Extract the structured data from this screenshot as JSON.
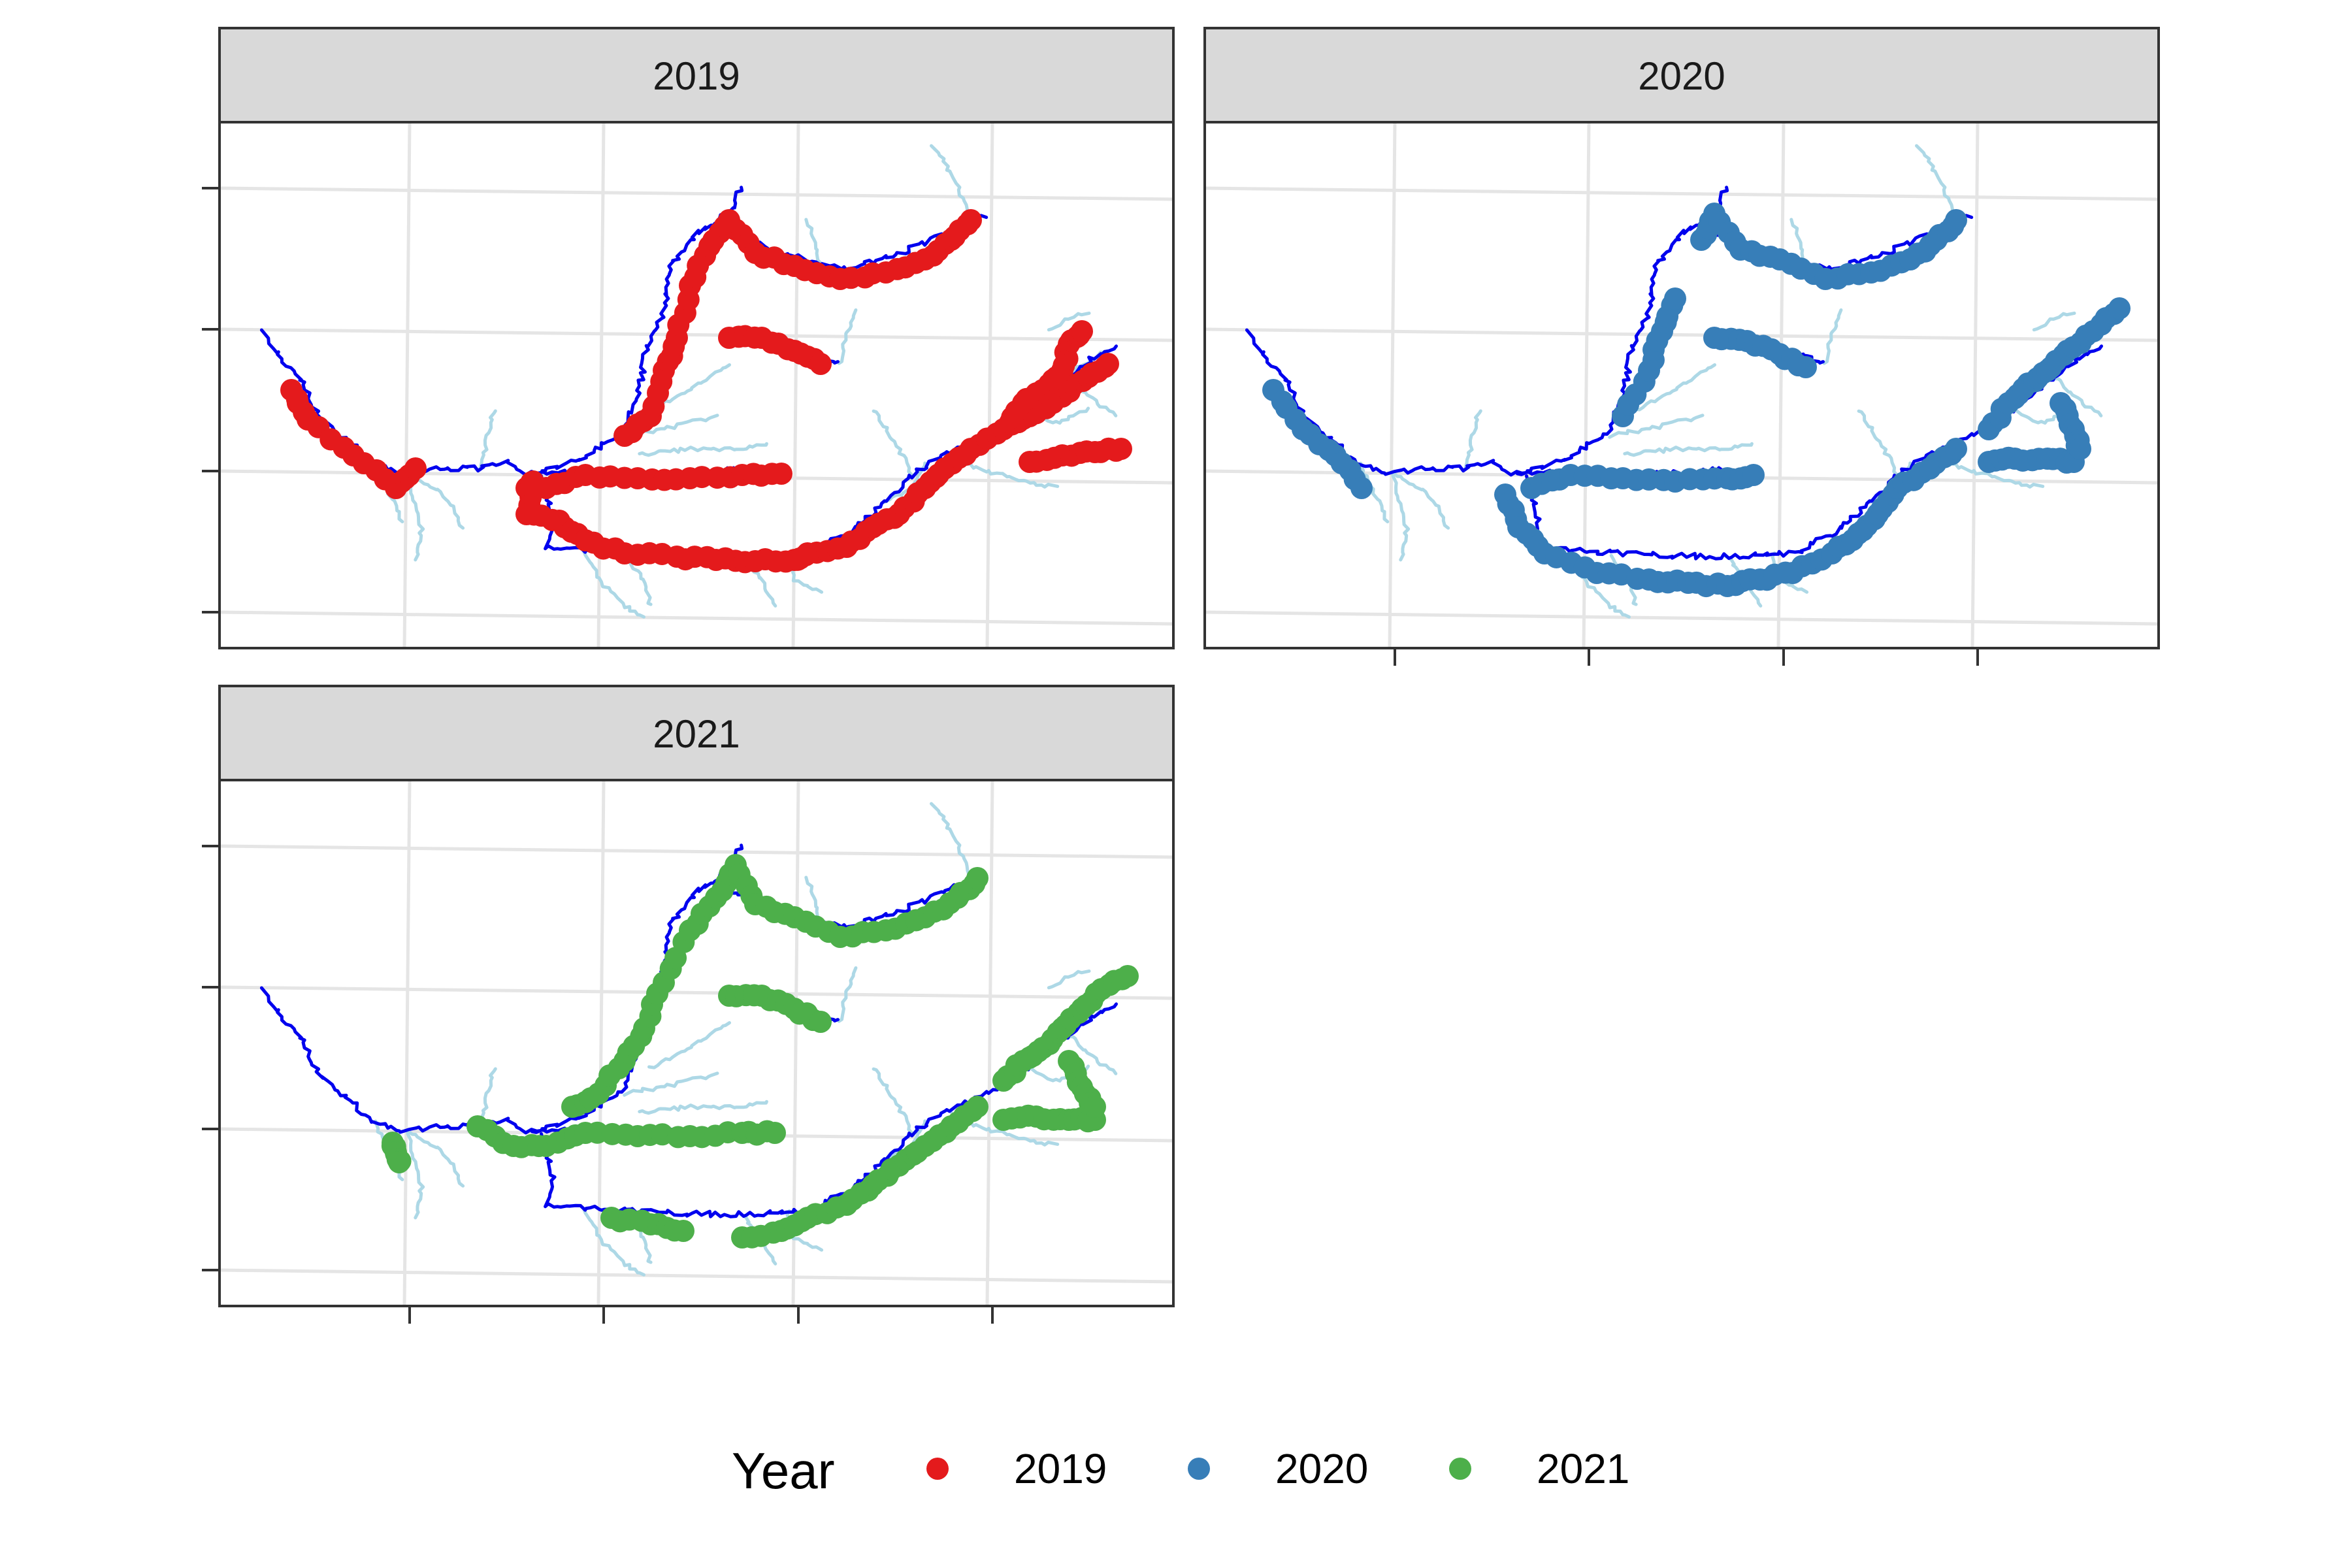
{
  "panels": [
    {
      "year": "2019",
      "color": "#E41A1C"
    },
    {
      "year": "2020",
      "color": "#377EB8"
    },
    {
      "year": "2021",
      "color": "#4DAF4A"
    }
  ],
  "legend": {
    "title": "Year",
    "entries": [
      {
        "label": "2019",
        "color": "#E41A1C"
      },
      {
        "label": "2020",
        "color": "#377EB8"
      },
      {
        "label": "2021",
        "color": "#4DAF4A"
      }
    ]
  },
  "map_colors": {
    "mainstem": "#0000EE",
    "tributary": "#ADD8E6",
    "gridline": "#E5E5E5",
    "strip_fill": "#D9D9D9"
  }
}
